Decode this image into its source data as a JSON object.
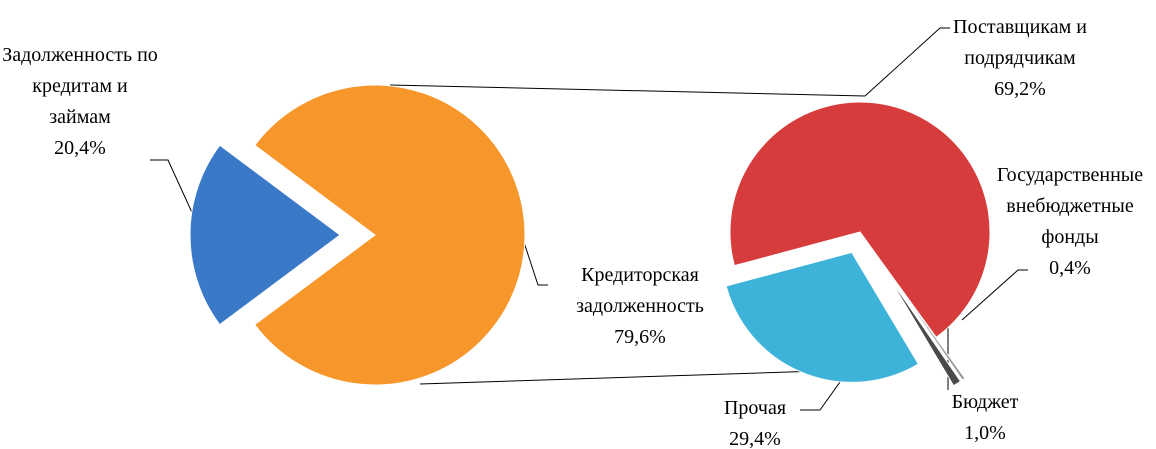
{
  "chart_data": [
    {
      "type": "pie",
      "categories": [
        "Задолженность по\nкредитам и\nзаймам",
        "Кредиторская\nзадолженность"
      ],
      "values": [
        20.4,
        79.6
      ],
      "value_labels": [
        "20,4%",
        "79,6%"
      ],
      "colors": [
        "#3a78c8",
        "#f7962a"
      ]
    },
    {
      "type": "pie",
      "categories": [
        "Поставщикам и\nподрядчикам",
        "Государственные\nвнебюджетные\nфонды",
        "Бюджет",
        "Прочая"
      ],
      "values": [
        69.2,
        0.4,
        1.0,
        29.4
      ],
      "value_labels": [
        "69,2%",
        "0,4%",
        "1,0%",
        "29,4%"
      ],
      "colors": [
        "#d63c3c",
        "#9a9a9a",
        "#4a4a4a",
        "#3db3da"
      ]
    }
  ]
}
